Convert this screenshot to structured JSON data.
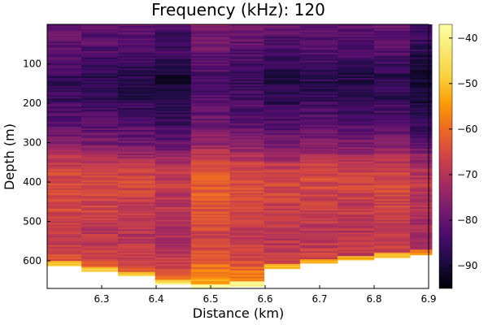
{
  "chart_data": {
    "type": "heatmap",
    "title": "Frequency (kHz): 120",
    "xlabel": "Distance (km)",
    "ylabel": "Depth (m)",
    "xlim": [
      6.2,
      6.9
    ],
    "ylim": [
      0,
      670
    ],
    "y_inverted": true,
    "x_ticks": [
      "6.3",
      "6.4",
      "6.5",
      "6.6",
      "6.7",
      "6.8",
      "6.9"
    ],
    "x_tick_values": [
      6.3,
      6.4,
      6.5,
      6.6,
      6.7,
      6.8,
      6.9
    ],
    "y_ticks": [
      "100",
      "200",
      "300",
      "400",
      "500",
      "600"
    ],
    "y_tick_values": [
      100,
      200,
      300,
      400,
      500,
      600
    ],
    "colorbar": {
      "min": -95,
      "max": -37,
      "ticks": [
        "−90",
        "−80",
        "−70",
        "−60",
        "−50",
        "−40"
      ],
      "tick_values": [
        -90,
        -80,
        -70,
        -60,
        -50,
        -40
      ],
      "colormap": "inferno"
    },
    "columns": [
      {
        "x_start": 6.2,
        "x_end": 6.263,
        "max_depth": 613
      },
      {
        "x_start": 6.263,
        "x_end": 6.33,
        "max_depth": 627
      },
      {
        "x_start": 6.33,
        "x_end": 6.398,
        "max_depth": 638
      },
      {
        "x_start": 6.398,
        "x_end": 6.464,
        "max_depth": 659
      },
      {
        "x_start": 6.464,
        "x_end": 6.535,
        "max_depth": 670
      },
      {
        "x_start": 6.535,
        "x_end": 6.598,
        "max_depth": 665
      },
      {
        "x_start": 6.598,
        "x_end": 6.664,
        "max_depth": 620
      },
      {
        "x_start": 6.664,
        "x_end": 6.733,
        "max_depth": 606
      },
      {
        "x_start": 6.733,
        "x_end": 6.8,
        "max_depth": 598
      },
      {
        "x_start": 6.8,
        "x_end": 6.866,
        "max_depth": 592
      },
      {
        "x_start": 6.866,
        "x_end": 6.906,
        "max_depth": 585
      }
    ],
    "depth_profile": [
      {
        "depth": 0,
        "value": -80
      },
      {
        "depth": 20,
        "value": -82
      },
      {
        "depth": 60,
        "value": -83
      },
      {
        "depth": 100,
        "value": -86
      },
      {
        "depth": 140,
        "value": -88
      },
      {
        "depth": 180,
        "value": -87
      },
      {
        "depth": 220,
        "value": -85
      },
      {
        "depth": 260,
        "value": -82
      },
      {
        "depth": 300,
        "value": -78
      },
      {
        "depth": 330,
        "value": -73
      },
      {
        "depth": 360,
        "value": -68
      },
      {
        "depth": 400,
        "value": -66
      },
      {
        "depth": 440,
        "value": -67
      },
      {
        "depth": 480,
        "value": -68
      },
      {
        "depth": 520,
        "value": -70
      },
      {
        "depth": 560,
        "value": -69
      },
      {
        "depth": 600,
        "value": -66
      },
      {
        "depth": 640,
        "value": -60
      },
      {
        "depth": 670,
        "value": -52
      }
    ],
    "column_offsets": [
      2,
      1,
      0,
      -2,
      4,
      2,
      0,
      1,
      0,
      1,
      -3
    ]
  }
}
